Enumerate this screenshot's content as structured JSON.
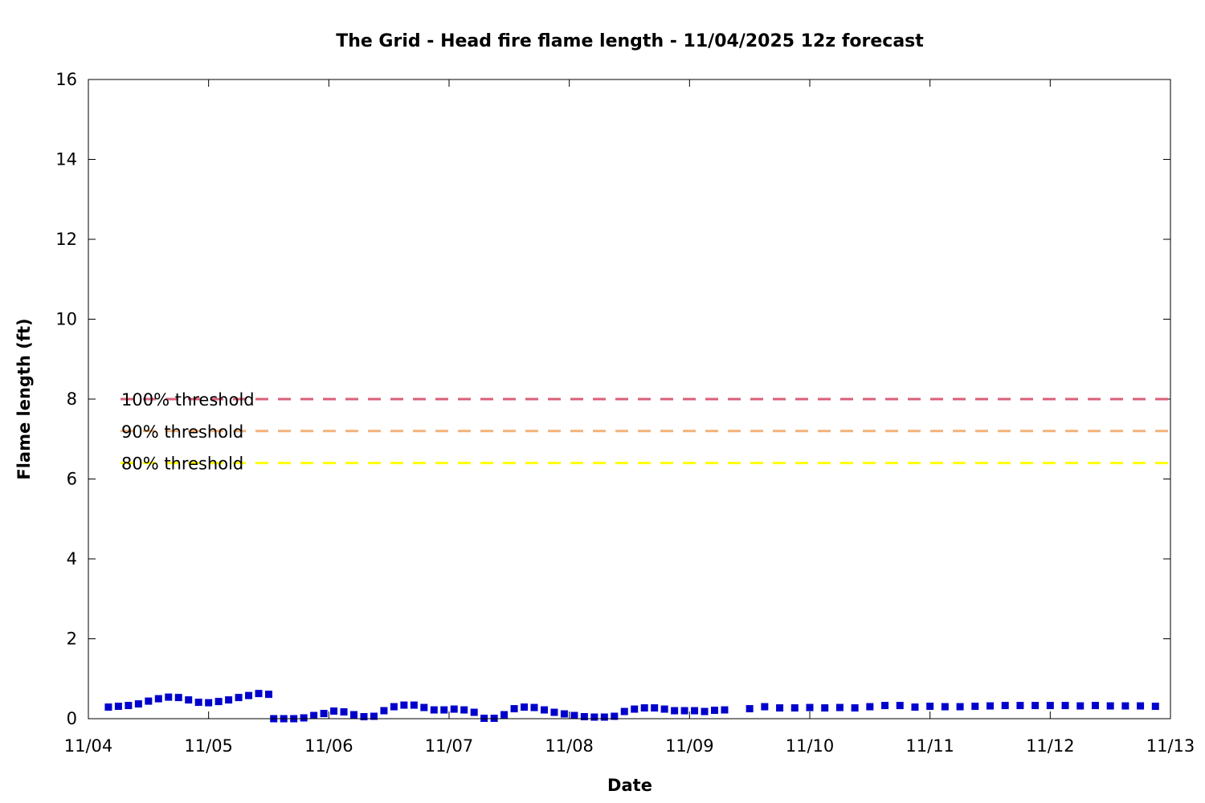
{
  "chart_data": {
    "type": "scatter",
    "title": "The Grid - Head fire flame length - 11/04/2025 12z forecast",
    "xlabel": "Date",
    "ylabel": "Flame length (ft)",
    "xlim": [
      "2025-11-04T00:00",
      "2025-11-13T00:00"
    ],
    "ylim": [
      0,
      16
    ],
    "x_ticks": [
      "11/04",
      "11/05",
      "11/06",
      "11/07",
      "11/08",
      "11/09",
      "11/10",
      "11/11",
      "11/12",
      "11/13"
    ],
    "y_ticks": [
      0,
      2,
      4,
      6,
      8,
      10,
      12,
      14,
      16
    ],
    "grid": false,
    "thresholds": [
      {
        "name": "100% threshold",
        "value": 8.0,
        "color": "#d95f7a"
      },
      {
        "name": "90% threshold",
        "value": 7.2,
        "color": "#f2b27a"
      },
      {
        "name": "80% threshold",
        "value": 6.4,
        "color": "#ffff00"
      }
    ],
    "series": [
      {
        "color": "#0000cc",
        "points": [
          [
            "2025-11-04T04:00",
            0.29
          ],
          [
            "2025-11-04T06:00",
            0.31
          ],
          [
            "2025-11-04T08:00",
            0.33
          ],
          [
            "2025-11-04T10:00",
            0.37
          ],
          [
            "2025-11-04T12:00",
            0.44
          ],
          [
            "2025-11-04T14:00",
            0.5
          ],
          [
            "2025-11-04T16:00",
            0.54
          ],
          [
            "2025-11-04T18:00",
            0.53
          ],
          [
            "2025-11-04T20:00",
            0.47
          ],
          [
            "2025-11-04T22:00",
            0.41
          ],
          [
            "2025-11-05T00:00",
            0.4
          ],
          [
            "2025-11-05T02:00",
            0.43
          ],
          [
            "2025-11-05T04:00",
            0.47
          ],
          [
            "2025-11-05T06:00",
            0.53
          ],
          [
            "2025-11-05T08:00",
            0.58
          ],
          [
            "2025-11-05T10:00",
            0.63
          ],
          [
            "2025-11-05T12:00",
            0.61
          ],
          [
            "2025-11-05T13:00",
            0.0
          ],
          [
            "2025-11-05T15:00",
            0.0
          ],
          [
            "2025-11-05T17:00",
            0.0
          ],
          [
            "2025-11-05T19:00",
            0.02
          ],
          [
            "2025-11-05T21:00",
            0.08
          ],
          [
            "2025-11-05T23:00",
            0.13
          ],
          [
            "2025-11-06T01:00",
            0.19
          ],
          [
            "2025-11-06T03:00",
            0.17
          ],
          [
            "2025-11-06T05:00",
            0.1
          ],
          [
            "2025-11-06T07:00",
            0.05
          ],
          [
            "2025-11-06T09:00",
            0.06
          ],
          [
            "2025-11-06T11:00",
            0.2
          ],
          [
            "2025-11-06T13:00",
            0.3
          ],
          [
            "2025-11-06T15:00",
            0.34
          ],
          [
            "2025-11-06T17:00",
            0.34
          ],
          [
            "2025-11-06T19:00",
            0.28
          ],
          [
            "2025-11-06T21:00",
            0.22
          ],
          [
            "2025-11-06T23:00",
            0.22
          ],
          [
            "2025-11-07T01:00",
            0.24
          ],
          [
            "2025-11-07T03:00",
            0.22
          ],
          [
            "2025-11-07T05:00",
            0.16
          ],
          [
            "2025-11-07T07:00",
            0.01
          ],
          [
            "2025-11-07T09:00",
            0.01
          ],
          [
            "2025-11-07T11:00",
            0.1
          ],
          [
            "2025-11-07T13:00",
            0.25
          ],
          [
            "2025-11-07T15:00",
            0.29
          ],
          [
            "2025-11-07T17:00",
            0.28
          ],
          [
            "2025-11-07T19:00",
            0.22
          ],
          [
            "2025-11-07T21:00",
            0.16
          ],
          [
            "2025-11-07T23:00",
            0.12
          ],
          [
            "2025-11-08T01:00",
            0.08
          ],
          [
            "2025-11-08T03:00",
            0.05
          ],
          [
            "2025-11-08T05:00",
            0.04
          ],
          [
            "2025-11-08T07:00",
            0.04
          ],
          [
            "2025-11-08T09:00",
            0.06
          ],
          [
            "2025-11-08T11:00",
            0.18
          ],
          [
            "2025-11-08T13:00",
            0.24
          ],
          [
            "2025-11-08T15:00",
            0.27
          ],
          [
            "2025-11-08T17:00",
            0.27
          ],
          [
            "2025-11-08T19:00",
            0.24
          ],
          [
            "2025-11-08T21:00",
            0.2
          ],
          [
            "2025-11-08T23:00",
            0.2
          ],
          [
            "2025-11-09T01:00",
            0.2
          ],
          [
            "2025-11-09T03:00",
            0.18
          ],
          [
            "2025-11-09T05:00",
            0.21
          ],
          [
            "2025-11-09T07:00",
            0.22
          ],
          [
            "2025-11-09T12:00",
            0.25
          ],
          [
            "2025-11-09T15:00",
            0.3
          ],
          [
            "2025-11-09T18:00",
            0.27
          ],
          [
            "2025-11-09T21:00",
            0.27
          ],
          [
            "2025-11-10T00:00",
            0.28
          ],
          [
            "2025-11-10T03:00",
            0.27
          ],
          [
            "2025-11-10T06:00",
            0.28
          ],
          [
            "2025-11-10T09:00",
            0.27
          ],
          [
            "2025-11-10T12:00",
            0.3
          ],
          [
            "2025-11-10T15:00",
            0.33
          ],
          [
            "2025-11-10T18:00",
            0.33
          ],
          [
            "2025-11-10T21:00",
            0.29
          ],
          [
            "2025-11-11T00:00",
            0.31
          ],
          [
            "2025-11-11T03:00",
            0.3
          ],
          [
            "2025-11-11T06:00",
            0.3
          ],
          [
            "2025-11-11T09:00",
            0.31
          ],
          [
            "2025-11-11T12:00",
            0.32
          ],
          [
            "2025-11-11T15:00",
            0.33
          ],
          [
            "2025-11-11T18:00",
            0.33
          ],
          [
            "2025-11-11T21:00",
            0.33
          ],
          [
            "2025-11-12T00:00",
            0.33
          ],
          [
            "2025-11-12T03:00",
            0.33
          ],
          [
            "2025-11-12T06:00",
            0.32
          ],
          [
            "2025-11-12T09:00",
            0.33
          ],
          [
            "2025-11-12T12:00",
            0.32
          ],
          [
            "2025-11-12T15:00",
            0.32
          ],
          [
            "2025-11-12T18:00",
            0.32
          ],
          [
            "2025-11-12T21:00",
            0.31
          ]
        ]
      }
    ]
  }
}
